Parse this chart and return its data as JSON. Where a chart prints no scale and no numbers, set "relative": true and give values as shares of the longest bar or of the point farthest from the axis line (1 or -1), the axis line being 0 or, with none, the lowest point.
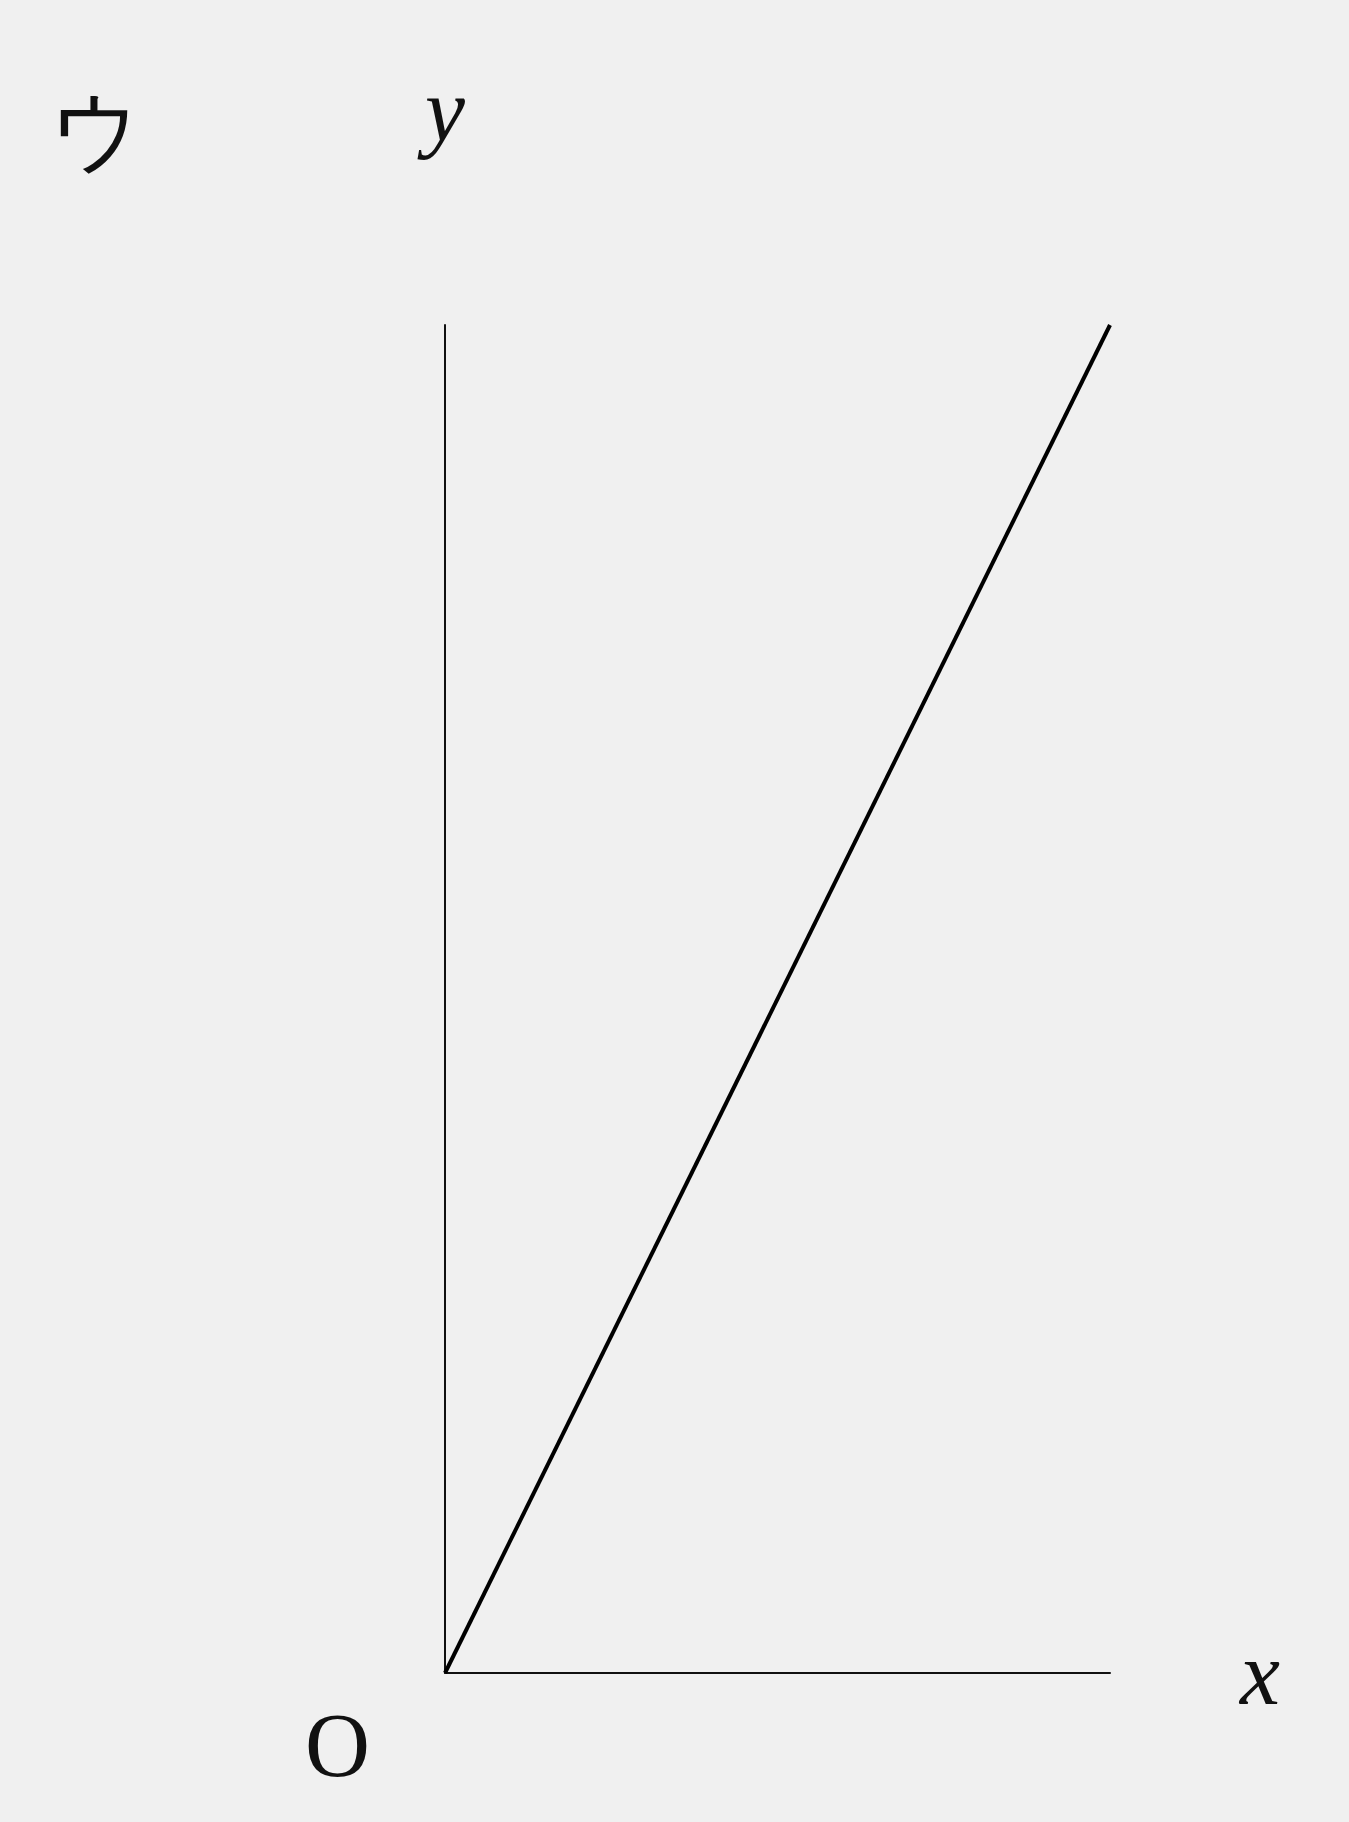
{
  "chart_data": {
    "type": "line",
    "title": "ウ",
    "xlabel": "x",
    "ylabel": "y",
    "annotations": [
      "O"
    ],
    "categories": [
      null,
      null
    ],
    "values": [
      0,
      1
    ],
    "color": "#000000",
    "relative": true
  }
}
